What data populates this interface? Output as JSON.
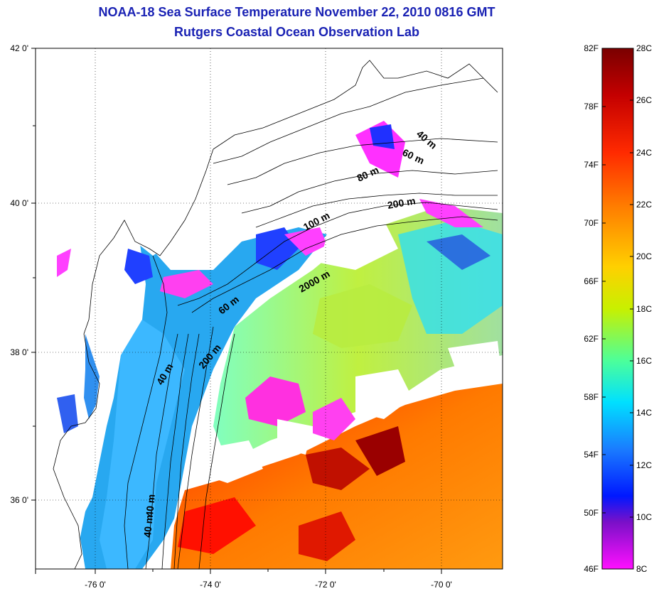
{
  "title": {
    "line1": "NOAA-18 Sea Surface Temperature November 22, 2010 0816 GMT",
    "line2": "Rutgers Coastal Ocean Observation Lab"
  },
  "map": {
    "lat_labels": [
      "42 0'",
      "40 0'",
      "38 0'",
      "36 0'"
    ],
    "lon_labels": [
      "-76 0'",
      "-74 0'",
      "-72 0'",
      "-70 0'"
    ],
    "depth_labels": [
      {
        "text": "40 m"
      },
      {
        "text": "60 m"
      },
      {
        "text": "80 m"
      },
      {
        "text": "200 m"
      },
      {
        "text": "100 m"
      },
      {
        "text": "2000 m"
      },
      {
        "text": "60 m"
      },
      {
        "text": "200 m"
      },
      {
        "text": "40 m"
      },
      {
        "text": "40 m"
      },
      {
        "text": "40 m"
      }
    ]
  },
  "colorbar": {
    "fahrenheit": [
      "82F",
      "78F",
      "74F",
      "70F",
      "66F",
      "62F",
      "58F",
      "54F",
      "50F",
      "46F"
    ],
    "celsius": [
      "28C",
      "26C",
      "24C",
      "22C",
      "20C",
      "18C",
      "16C",
      "14C",
      "12C",
      "10C",
      "8C"
    ],
    "colors": [
      "#7a0000",
      "#c40000",
      "#ff2a00",
      "#ff7a00",
      "#ffd000",
      "#c8f000",
      "#4cff9a",
      "#00e0ff",
      "#1a7cff",
      "#0018ff",
      "#7a10c8",
      "#ff10ff"
    ]
  }
}
